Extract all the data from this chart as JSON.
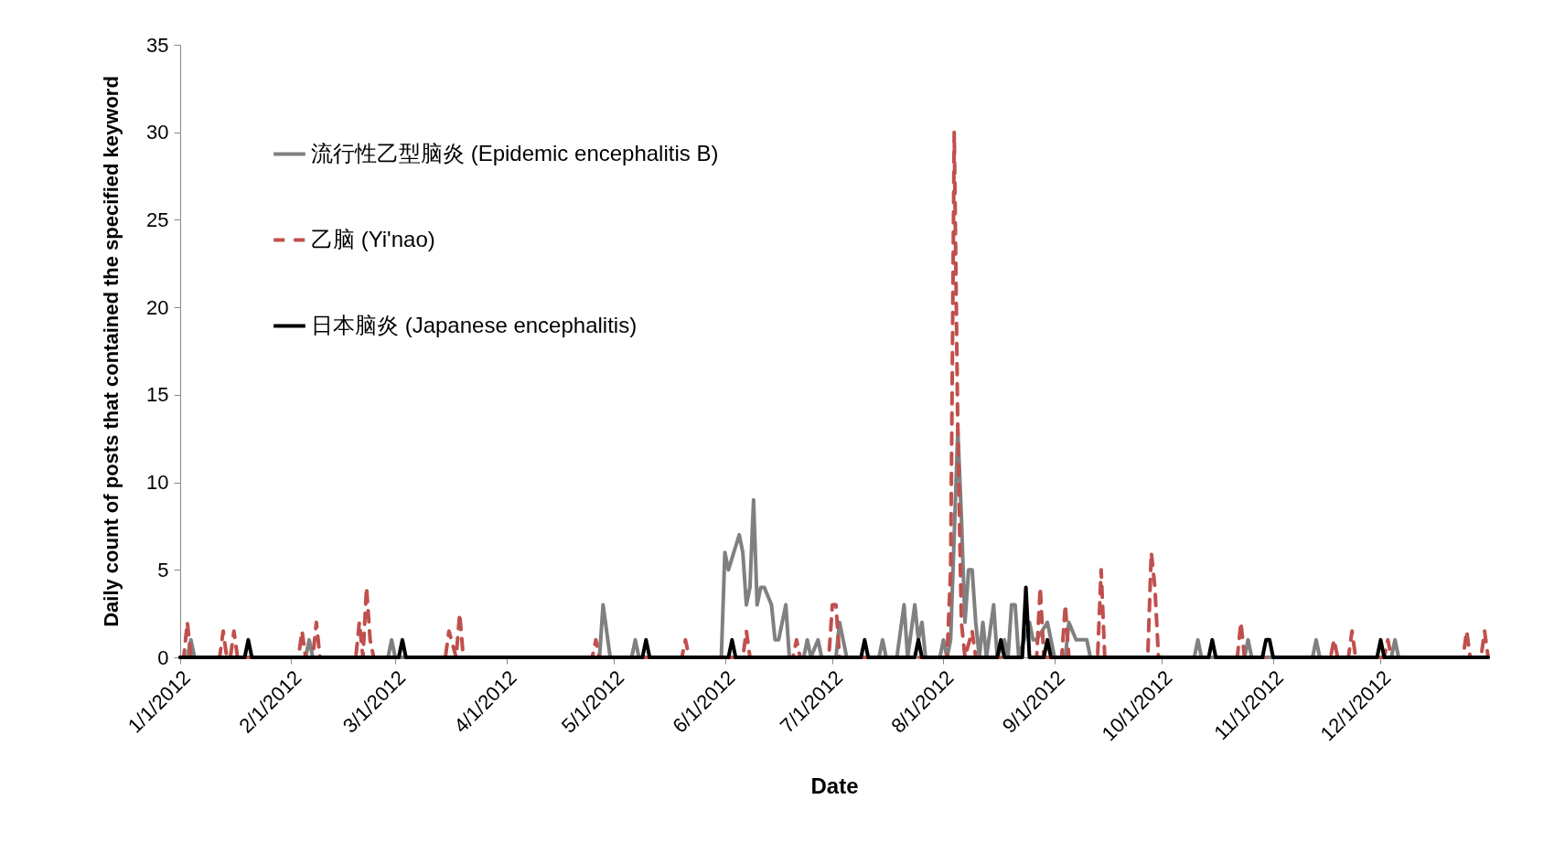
{
  "chart_data": {
    "type": "line",
    "xlabel": "Date",
    "ylabel": "Daily count of posts that contained the specified keyword",
    "xlim": [
      "2012-01-01",
      "2012-12-31"
    ],
    "xticks": [
      {
        "value": "2012-01-01",
        "label": "1/1/2012"
      },
      {
        "value": "2012-02-01",
        "label": "2/1/2012"
      },
      {
        "value": "2012-03-01",
        "label": "3/1/2012"
      },
      {
        "value": "2012-04-01",
        "label": "4/1/2012"
      },
      {
        "value": "2012-05-01",
        "label": "5/1/2012"
      },
      {
        "value": "2012-06-01",
        "label": "6/1/2012"
      },
      {
        "value": "2012-07-01",
        "label": "7/1/2012"
      },
      {
        "value": "2012-08-01",
        "label": "8/1/2012"
      },
      {
        "value": "2012-09-01",
        "label": "9/1/2012"
      },
      {
        "value": "2012-10-01",
        "label": "10/1/2012"
      },
      {
        "value": "2012-11-01",
        "label": "11/1/2012"
      },
      {
        "value": "2012-12-01",
        "label": "12/1/2012"
      }
    ],
    "ylim": [
      0,
      35
    ],
    "yticks": [
      0,
      5,
      10,
      15,
      20,
      25,
      30,
      35
    ],
    "grid": false,
    "legend": "top left",
    "marker": "none",
    "series": [
      {
        "name": "流行性乙型脑炎 (Epidemic encephalitis B)",
        "color": "#808080",
        "line_style": "solid",
        "x": [
          "2012-01-01",
          "2012-01-03",
          "2012-01-04",
          "2012-01-05",
          "2012-02-05",
          "2012-02-06",
          "2012-02-07",
          "2012-02-28",
          "2012-02-29",
          "2012-03-01",
          "2012-04-27",
          "2012-04-28",
          "2012-04-30",
          "2012-05-06",
          "2012-05-07",
          "2012-05-08",
          "2012-05-31",
          "2012-06-01",
          "2012-06-02",
          "2012-06-05",
          "2012-06-06",
          "2012-06-07",
          "2012-06-08",
          "2012-06-09",
          "2012-06-10",
          "2012-06-11",
          "2012-06-12",
          "2012-06-14",
          "2012-06-15",
          "2012-06-16",
          "2012-06-18",
          "2012-06-19",
          "2012-06-23",
          "2012-06-24",
          "2012-06-25",
          "2012-06-27",
          "2012-06-28",
          "2012-07-02",
          "2012-07-03",
          "2012-07-04",
          "2012-07-05",
          "2012-07-14",
          "2012-07-15",
          "2012-07-16",
          "2012-07-19",
          "2012-07-21",
          "2012-07-22",
          "2012-07-24",
          "2012-07-25",
          "2012-07-26",
          "2012-07-27",
          "2012-07-31",
          "2012-08-01",
          "2012-08-02",
          "2012-08-03",
          "2012-08-05",
          "2012-08-06",
          "2012-08-07",
          "2012-08-08",
          "2012-08-09",
          "2012-08-10",
          "2012-08-11",
          "2012-08-12",
          "2012-08-13",
          "2012-08-15",
          "2012-08-16",
          "2012-08-18",
          "2012-08-19",
          "2012-08-20",
          "2012-08-21",
          "2012-08-22",
          "2012-08-25",
          "2012-08-26",
          "2012-08-27",
          "2012-08-30",
          "2012-09-01",
          "2012-09-04",
          "2012-09-05",
          "2012-09-07",
          "2012-09-10",
          "2012-09-11",
          "2012-10-10",
          "2012-10-11",
          "2012-10-12",
          "2012-10-24",
          "2012-10-25",
          "2012-10-26",
          "2012-11-12",
          "2012-11-13",
          "2012-11-14",
          "2012-12-04",
          "2012-12-05",
          "2012-12-06",
          "2012-12-31"
        ],
        "values": [
          0,
          0,
          1,
          0,
          0,
          1,
          0,
          0,
          1,
          0,
          0,
          3,
          0,
          0,
          1,
          0,
          0,
          6,
          5,
          7,
          6,
          3,
          4,
          9,
          3,
          4,
          4,
          3,
          1,
          1,
          3,
          0,
          0,
          1,
          0,
          1,
          0,
          0,
          2,
          1,
          0,
          0,
          1,
          0,
          0,
          3,
          0,
          3,
          1,
          2,
          0,
          0,
          1,
          0,
          1,
          13,
          8,
          2,
          5,
          5,
          2,
          0,
          2,
          0,
          3,
          0,
          1,
          0,
          3,
          3,
          0,
          2,
          1,
          1,
          2,
          0,
          0,
          2,
          1,
          1,
          0,
          0,
          1,
          0,
          0,
          1,
          0,
          0,
          1,
          0,
          0,
          1,
          0,
          0
        ]
      },
      {
        "name": "乙脑 (Yi'nao)",
        "color": "#c0504d",
        "line_style": "dashed",
        "x": [
          "2012-01-01",
          "2012-01-02",
          "2012-01-03",
          "2012-01-04",
          "2012-01-12",
          "2012-01-13",
          "2012-01-14",
          "2012-01-15",
          "2012-01-16",
          "2012-01-17",
          "2012-02-03",
          "2012-02-04",
          "2012-02-05",
          "2012-02-07",
          "2012-02-08",
          "2012-02-09",
          "2012-02-19",
          "2012-02-20",
          "2012-02-21",
          "2012-02-22",
          "2012-02-23",
          "2012-02-24",
          "2012-02-25",
          "2012-03-15",
          "2012-03-16",
          "2012-03-18",
          "2012-03-19",
          "2012-03-20",
          "2012-04-25",
          "2012-04-26",
          "2012-04-27",
          "2012-05-20",
          "2012-05-21",
          "2012-05-22",
          "2012-06-06",
          "2012-06-07",
          "2012-06-08",
          "2012-06-20",
          "2012-06-21",
          "2012-06-22",
          "2012-06-30",
          "2012-07-01",
          "2012-07-02",
          "2012-07-03",
          "2012-08-02",
          "2012-08-03",
          "2012-08-04",
          "2012-08-05",
          "2012-08-06",
          "2012-08-07",
          "2012-08-09",
          "2012-08-10",
          "2012-08-27",
          "2012-08-28",
          "2012-08-29",
          "2012-09-03",
          "2012-09-04",
          "2012-09-05",
          "2012-09-13",
          "2012-09-14",
          "2012-09-15",
          "2012-09-27",
          "2012-09-28",
          "2012-09-29",
          "2012-09-30",
          "2012-10-22",
          "2012-10-23",
          "2012-10-24",
          "2012-11-17",
          "2012-11-18",
          "2012-11-19",
          "2012-11-22",
          "2012-11-23",
          "2012-11-24",
          "2012-12-02",
          "2012-12-03",
          "2012-12-04",
          "2012-12-24",
          "2012-12-25",
          "2012-12-26",
          "2012-12-29",
          "2012-12-30",
          "2012-12-31"
        ],
        "values": [
          0,
          0,
          2,
          0,
          0,
          1.5,
          0,
          0,
          1.5,
          0,
          0,
          1.5,
          0,
          0,
          2,
          0,
          0,
          2,
          0,
          4,
          1,
          0,
          0,
          0,
          1.5,
          0,
          2.5,
          0,
          0,
          1,
          0,
          0,
          1,
          0,
          0,
          1.5,
          0,
          0,
          1,
          0,
          0,
          3,
          3,
          0,
          0,
          5,
          30,
          13,
          2,
          0,
          1.5,
          0,
          0,
          4,
          0,
          0,
          3,
          0,
          0,
          5,
          0,
          0,
          6,
          4,
          0,
          0,
          2,
          0,
          0,
          1,
          0,
          0,
          1.5,
          0,
          0,
          1,
          0,
          0,
          1.5,
          0,
          0,
          1.5,
          0
        ]
      },
      {
        "name": "日本脑炎 (Japanese encephalitis)",
        "color": "#000000",
        "line_style": "solid",
        "x": [
          "2012-01-01",
          "2012-01-19",
          "2012-01-20",
          "2012-01-21",
          "2012-03-02",
          "2012-03-03",
          "2012-03-04",
          "2012-05-09",
          "2012-05-10",
          "2012-05-11",
          "2012-06-02",
          "2012-06-03",
          "2012-06-04",
          "2012-07-09",
          "2012-07-10",
          "2012-07-11",
          "2012-07-24",
          "2012-07-25",
          "2012-07-26",
          "2012-08-16",
          "2012-08-17",
          "2012-08-18",
          "2012-08-23",
          "2012-08-24",
          "2012-08-25",
          "2012-08-29",
          "2012-08-30",
          "2012-08-31",
          "2012-10-14",
          "2012-10-15",
          "2012-10-16",
          "2012-10-29",
          "2012-10-30",
          "2012-10-31",
          "2012-11-01",
          "2012-11-30",
          "2012-12-01",
          "2012-12-02",
          "2012-12-31"
        ],
        "values": [
          0,
          0,
          1,
          0,
          0,
          1,
          0,
          0,
          1,
          0,
          0,
          1,
          0,
          0,
          1,
          0,
          0,
          1,
          0,
          0,
          1,
          0,
          0,
          4,
          0,
          0,
          1,
          0,
          0,
          1,
          0,
          0,
          1,
          1,
          0,
          0,
          1,
          0,
          0
        ]
      }
    ]
  }
}
